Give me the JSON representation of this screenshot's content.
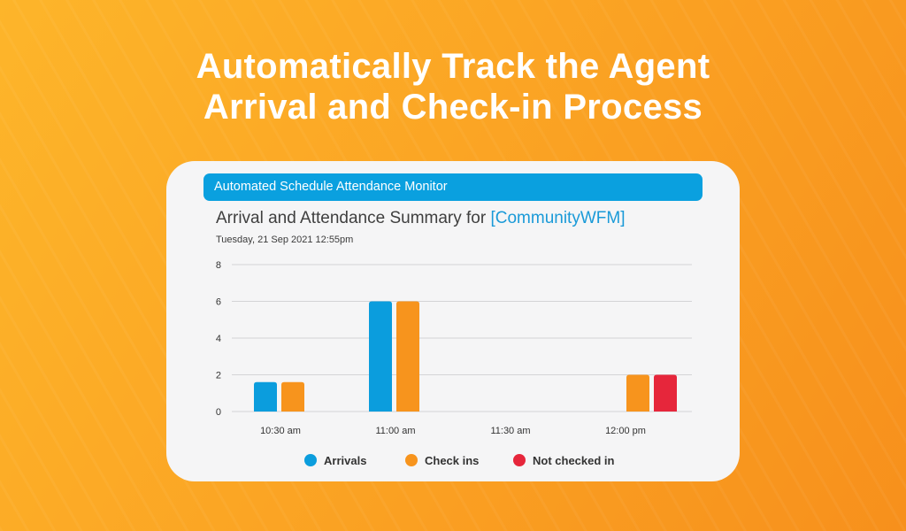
{
  "headline": {
    "line1": "Automatically Track the Agent",
    "line2": "Arrival and Check-in Process"
  },
  "app": {
    "title": "Automated Schedule Attendance Monitor"
  },
  "summary": {
    "title_prefix": "Arrival and Attendance Summary for ",
    "title_highlight": "[CommunityWFM]",
    "timestamp": "Tuesday, 21 Sep 2021 12:55pm"
  },
  "colors": {
    "background_start": "#fdb52a",
    "background_end": "#f7901c",
    "app_bar": "#0aa0df",
    "highlight": "#1a9ad8",
    "arrivals": "#0b9ddd",
    "check_ins": "#f7941d",
    "not_checked_in": "#e6263b"
  },
  "chart_data": {
    "type": "bar",
    "categories": [
      "10:30 am",
      "11:00 am",
      "11:30 am",
      "12:00 pm"
    ],
    "series": [
      {
        "name": "Arrivals",
        "color": "#0b9ddd",
        "values": [
          1.6,
          6,
          0,
          0
        ]
      },
      {
        "name": "Check ins",
        "color": "#f7941d",
        "values": [
          1.6,
          6,
          0,
          2
        ]
      },
      {
        "name": "Not checked in",
        "color": "#e6263b",
        "values": [
          0,
          0,
          0,
          2
        ]
      }
    ],
    "yticks": [
      0,
      2,
      4,
      6,
      8
    ],
    "ylim": [
      0,
      8
    ],
    "grid": true,
    "legend_position": "bottom"
  }
}
